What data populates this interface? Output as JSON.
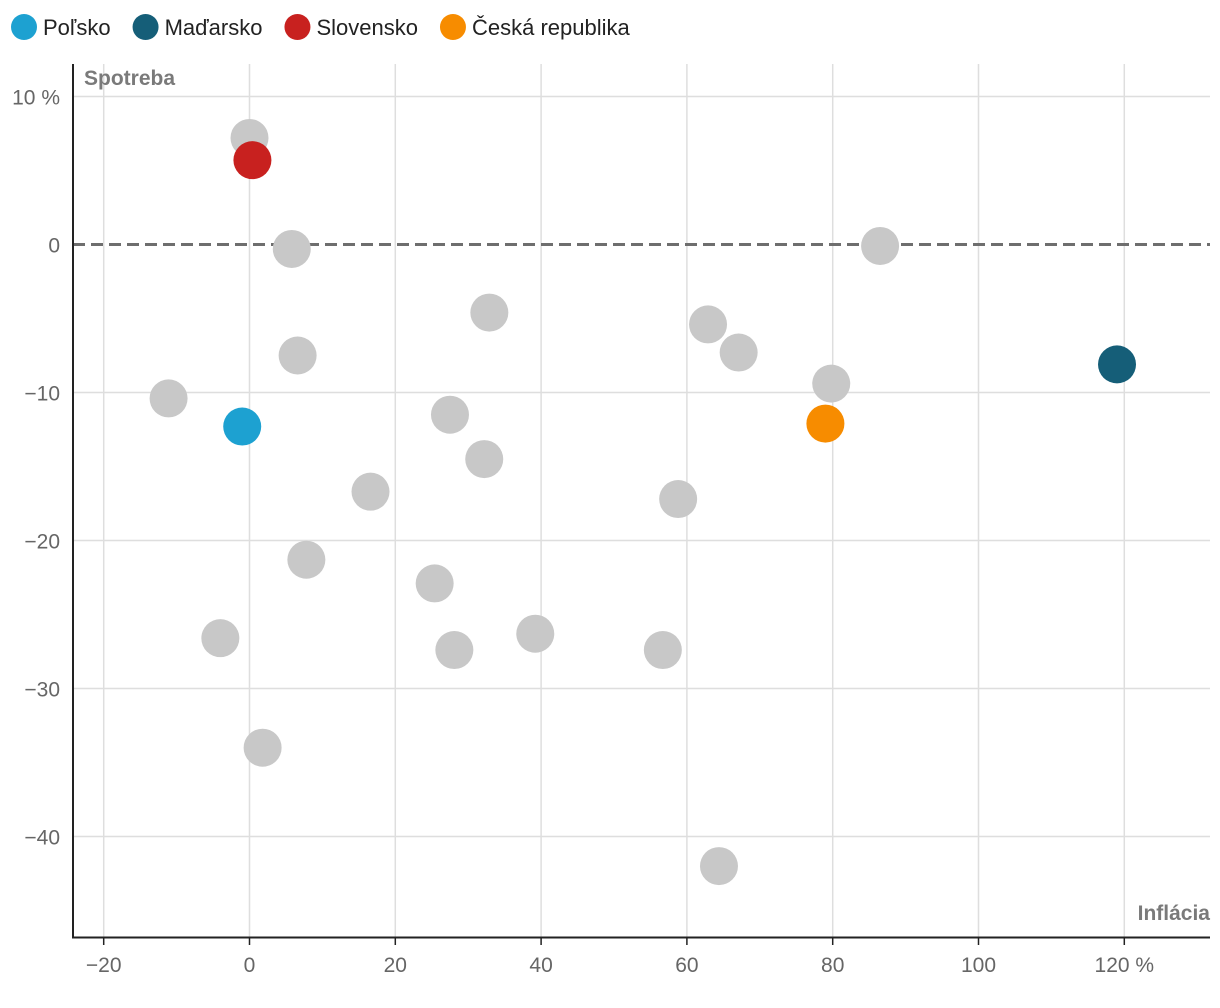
{
  "chart_data": {
    "type": "scatter",
    "title": "",
    "xlabel": "Inflácia",
    "ylabel": "Spotreba",
    "xlim": [
      -24,
      131
    ],
    "ylim": [
      -47,
      12
    ],
    "x_ticks": [
      {
        "value": -20,
        "label": "−20"
      },
      {
        "value": 0,
        "label": "0"
      },
      {
        "value": 20,
        "label": "20"
      },
      {
        "value": 40,
        "label": "40"
      },
      {
        "value": 60,
        "label": "60"
      },
      {
        "value": 80,
        "label": "80"
      },
      {
        "value": 100,
        "label": "100"
      },
      {
        "value": 120,
        "label": "120 %"
      }
    ],
    "y_ticks": [
      {
        "value": 10,
        "label": "10 %"
      },
      {
        "value": 0,
        "label": "0"
      },
      {
        "value": -10,
        "label": "−10"
      },
      {
        "value": -20,
        "label": "−20"
      },
      {
        "value": -30,
        "label": "−30"
      },
      {
        "value": -40,
        "label": "−40"
      }
    ],
    "reference_line": {
      "y": 0,
      "style": "dashed"
    },
    "legend": [
      {
        "name": "Poľsko",
        "color": "#1da1d1"
      },
      {
        "name": "Maďarsko",
        "color": "#155e78"
      },
      {
        "name": "Slovensko",
        "color": "#c8211f"
      },
      {
        "name": "Česká republika",
        "color": "#f78c00"
      }
    ],
    "other_color": "#c8c8c8",
    "other_points": [
      {
        "x": 0.0,
        "y": 7.2
      },
      {
        "x": 5.8,
        "y": -0.3
      },
      {
        "x": 86.5,
        "y": -0.1
      },
      {
        "x": 32.9,
        "y": -4.6
      },
      {
        "x": 62.9,
        "y": -5.4
      },
      {
        "x": 67.1,
        "y": -7.3
      },
      {
        "x": 6.6,
        "y": -7.5
      },
      {
        "x": 79.8,
        "y": -9.4
      },
      {
        "x": -11.1,
        "y": -10.4
      },
      {
        "x": 27.5,
        "y": -11.5
      },
      {
        "x": 32.2,
        "y": -14.5
      },
      {
        "x": 16.6,
        "y": -16.7
      },
      {
        "x": 58.8,
        "y": -17.2
      },
      {
        "x": 7.8,
        "y": -21.3
      },
      {
        "x": 25.4,
        "y": -22.9
      },
      {
        "x": 39.2,
        "y": -26.3
      },
      {
        "x": -4.0,
        "y": -26.6
      },
      {
        "x": 28.1,
        "y": -27.4
      },
      {
        "x": 56.7,
        "y": -27.4
      },
      {
        "x": 1.8,
        "y": -34.0
      },
      {
        "x": 64.4,
        "y": -42.0
      }
    ],
    "highlighted_points": [
      {
        "name": "Slovensko",
        "x": 0.4,
        "y": 5.7,
        "color": "#c8211f"
      },
      {
        "name": "Maďarsko",
        "x": 119.0,
        "y": -8.1,
        "color": "#155e78"
      },
      {
        "name": "Česká republika",
        "x": 79.0,
        "y": -12.1,
        "color": "#f78c00"
      },
      {
        "name": "Poľsko",
        "x": -1.0,
        "y": -12.3,
        "color": "#1da1d1"
      }
    ]
  }
}
